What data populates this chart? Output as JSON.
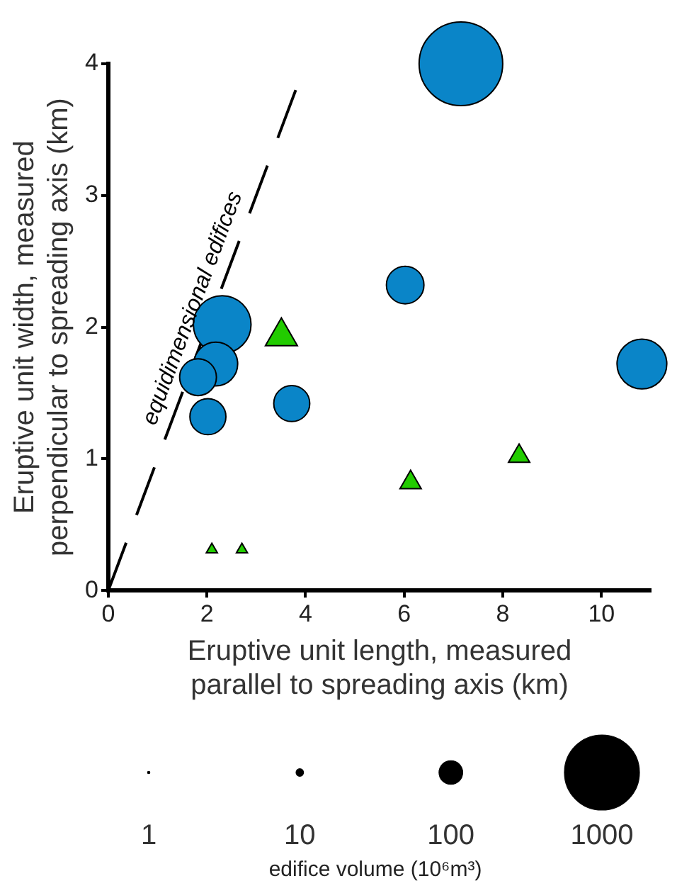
{
  "chart_data": {
    "type": "bubble",
    "xlabel": "Eruptive unit length, measured parallel to spreading axis (km)",
    "ylabel": "Eruptive unit width, measured perpendicular to spreading axis (km)",
    "legend_title": "edifice volume (10⁶m³)",
    "size_legend": [
      1,
      10,
      100,
      1000
    ],
    "xlim": [
      0,
      11
    ],
    "xticks": [
      0,
      2,
      4,
      6,
      8,
      10
    ],
    "ylim": [
      0,
      4
    ],
    "yticks": [
      0,
      1,
      2,
      3,
      4
    ],
    "grid": false,
    "legend": false,
    "series": [
      {
        "color": "#0a85c8",
        "marker": "circle",
        "x": [
          7.15,
          6.02,
          10.82,
          2.31,
          2.18,
          1.82,
          2.02,
          3.72
        ],
        "values": [
          4.0,
          2.32,
          1.72,
          2.02,
          1.72,
          1.62,
          1.32,
          1.42
        ],
        "sizes": [
          1240,
          250,
          440,
          590,
          340,
          240,
          230,
          230
        ]
      },
      {
        "color": "#22cc00",
        "marker": "triangle",
        "x": [
          3.51,
          6.13,
          8.33,
          2.1,
          2.71
        ],
        "values": [
          1.93,
          0.82,
          1.02,
          0.31,
          0.31
        ],
        "sizes": [
          100,
          44,
          44,
          12,
          12
        ]
      },
      {
        "type": "line",
        "name": "equidimensional edifices",
        "color": "#000000",
        "marker": "none",
        "line_style": "dashed",
        "x": [
          0,
          3.8
        ],
        "values": [
          0,
          3.8
        ]
      }
    ]
  }
}
